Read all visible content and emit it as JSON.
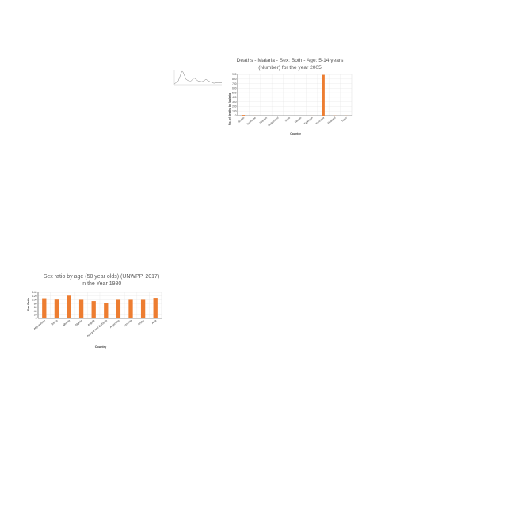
{
  "chart_data": [
    {
      "type": "line",
      "title": "",
      "xlabel": "",
      "ylabel": "",
      "x": [
        "",
        "",
        "",
        "",
        "",
        "",
        "",
        "",
        "",
        "",
        "",
        "",
        ""
      ],
      "values": [
        0.05,
        0.25,
        0.95,
        0.35,
        0.2,
        0.45,
        0.25,
        0.2,
        0.35,
        0.2,
        0.1,
        0.15,
        0.12
      ],
      "ylim": [
        0,
        1
      ],
      "grid": false,
      "colors": {
        "line": "#7f7f7f"
      }
    },
    {
      "type": "bar",
      "title": "Deaths - Malaria - Sex: Both - Age: 5-14 years",
      "subtitle": "(Number) for the year 2005",
      "xlabel": "Country",
      "ylabel": "No. of deaths by Malaria",
      "categories": [
        "Sudan",
        "Suriname",
        "Sweden",
        "Switzerland",
        "Syria",
        "Taiwan",
        "Tajikistan",
        "Tanzania",
        "Thailand",
        "Timor"
      ],
      "values": [
        15,
        1,
        0,
        0,
        0,
        0,
        1,
        890,
        3,
        2
      ],
      "ylim": [
        0,
        900
      ],
      "yticks": [
        0,
        100,
        200,
        300,
        400,
        500,
        600,
        700,
        800,
        900
      ],
      "grid": true,
      "colors": {
        "bar": "#ed7d31"
      }
    },
    {
      "type": "bar",
      "title": "Sex ratio by age (50 year olds) (UNWPP, 2017)",
      "subtitle": "in the Year 1980",
      "xlabel": "Country",
      "ylabel": "Sex Ratio",
      "categories": [
        "Afghanistan",
        "Africa",
        "Albania",
        "Algeria",
        "Angola",
        "Antigua and Barbuda",
        "Argentina",
        "Armenia",
        "Aruba",
        "Asia"
      ],
      "values": [
        108,
        101,
        122,
        100,
        93,
        83,
        100,
        100,
        100,
        110
      ],
      "ylim": [
        0,
        140
      ],
      "yticks": [
        0,
        20,
        40,
        60,
        80,
        100,
        120,
        140
      ],
      "grid": true,
      "colors": {
        "bar": "#ed7d31"
      }
    }
  ]
}
